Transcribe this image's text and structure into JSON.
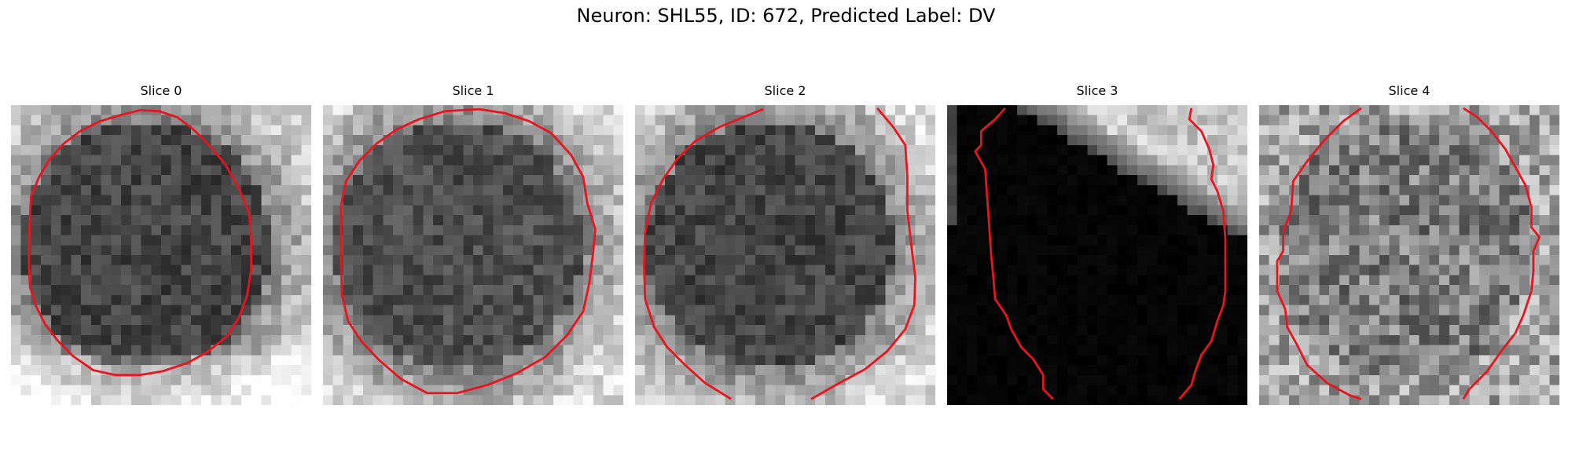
{
  "figure": {
    "title": "Neuron: SHL55, ID: 672, Predicted Label: DV"
  },
  "panels": [
    {
      "title": "Slice 0",
      "kind": "soma-dark"
    },
    {
      "title": "Slice 1",
      "kind": "soma-dark"
    },
    {
      "title": "Slice 2",
      "kind": "soma-dark"
    },
    {
      "title": "Slice 3",
      "kind": "black-with-bright-corner"
    },
    {
      "title": "Slice 4",
      "kind": "soma-bright"
    }
  ],
  "colors": {
    "contour": "#e8141e"
  }
}
